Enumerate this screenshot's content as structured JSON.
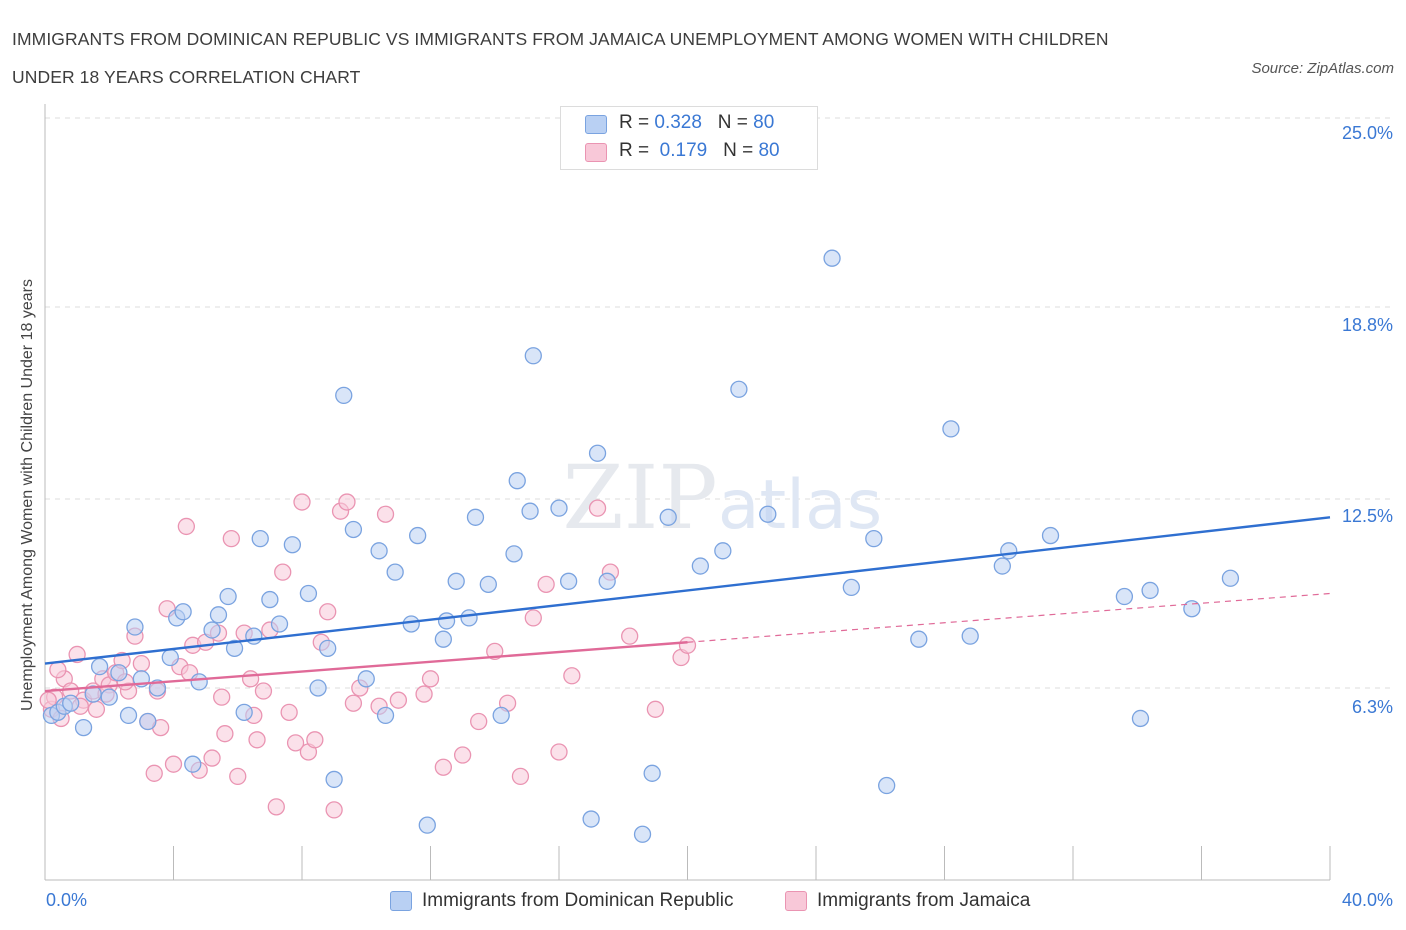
{
  "title_line1": "IMMIGRANTS FROM DOMINICAN REPUBLIC VS IMMIGRANTS FROM JAMAICA UNEMPLOYMENT AMONG WOMEN WITH CHILDREN",
  "title_line2": "UNDER 18 YEARS CORRELATION CHART",
  "source": "Source: ZipAtlas.com",
  "watermark": "ZIPatlas",
  "legend": {
    "row1": {
      "r_label": "R =",
      "r_value": "0.328",
      "n_label": "N =",
      "n_value": "80"
    },
    "row2": {
      "r_label": "R =",
      "r_value": "0.179",
      "n_label": "N =",
      "n_value": "80"
    }
  },
  "colors": {
    "blue_fill": "#b9d0f3",
    "blue_stroke": "#7aa3e0",
    "blue_line": "#2f6fd0",
    "pink_fill": "#f8c8d8",
    "pink_stroke": "#ea94b2",
    "pink_line": "#e06a98",
    "axis_text": "#3a78d4",
    "grid": "#dcdcdc"
  },
  "chart_data": {
    "type": "scatter",
    "title": "IMMIGRANTS FROM DOMINICAN REPUBLIC VS IMMIGRANTS FROM JAMAICA UNEMPLOYMENT AMONG WOMEN WITH CHILDREN UNDER 18 YEARS CORRELATION CHART",
    "xlabel": "",
    "ylabel": "Unemployment Among Women with Children Under 18 years",
    "xlim": [
      0,
      40
    ],
    "ylim": [
      0,
      25
    ],
    "x_tick_labels": [
      "0.0%",
      "40.0%"
    ],
    "y_tick_labels": [
      "6.3%",
      "12.5%",
      "18.8%",
      "25.0%"
    ],
    "y_ticks": [
      6.3,
      12.5,
      18.8,
      25.0
    ],
    "grid": true,
    "legend_position": "top-center",
    "series": [
      {
        "name": "Immigrants from Dominican Republic",
        "r": 0.328,
        "n": 80,
        "trend": {
          "x": [
            0,
            40
          ],
          "y": [
            7.1,
            11.9
          ]
        },
        "points": [
          [
            0.2,
            5.4
          ],
          [
            0.4,
            5.5
          ],
          [
            0.6,
            5.7
          ],
          [
            0.8,
            5.8
          ],
          [
            1.2,
            5.0
          ],
          [
            1.5,
            6.1
          ],
          [
            1.7,
            7.0
          ],
          [
            2.0,
            6.0
          ],
          [
            2.3,
            6.8
          ],
          [
            2.6,
            5.4
          ],
          [
            2.8,
            8.3
          ],
          [
            3.0,
            6.6
          ],
          [
            3.2,
            5.2
          ],
          [
            3.5,
            6.3
          ],
          [
            3.9,
            7.3
          ],
          [
            4.1,
            8.6
          ],
          [
            4.3,
            8.8
          ],
          [
            4.6,
            3.8
          ],
          [
            4.8,
            6.5
          ],
          [
            5.2,
            8.2
          ],
          [
            5.4,
            8.7
          ],
          [
            5.7,
            9.3
          ],
          [
            5.9,
            7.6
          ],
          [
            6.2,
            5.5
          ],
          [
            6.5,
            8.0
          ],
          [
            6.7,
            11.2
          ],
          [
            7.0,
            9.2
          ],
          [
            7.3,
            8.4
          ],
          [
            7.7,
            11.0
          ],
          [
            8.2,
            9.4
          ],
          [
            8.5,
            6.3
          ],
          [
            8.8,
            7.6
          ],
          [
            9.0,
            3.3
          ],
          [
            9.3,
            15.9
          ],
          [
            9.6,
            11.5
          ],
          [
            10.0,
            6.6
          ],
          [
            10.4,
            10.8
          ],
          [
            10.6,
            5.4
          ],
          [
            10.9,
            10.1
          ],
          [
            11.4,
            8.4
          ],
          [
            11.6,
            11.3
          ],
          [
            11.9,
            1.8
          ],
          [
            12.4,
            7.9
          ],
          [
            12.5,
            8.5
          ],
          [
            12.8,
            9.8
          ],
          [
            13.2,
            8.6
          ],
          [
            13.4,
            11.9
          ],
          [
            13.8,
            9.7
          ],
          [
            14.2,
            5.4
          ],
          [
            14.6,
            10.7
          ],
          [
            14.7,
            13.1
          ],
          [
            15.1,
            12.1
          ],
          [
            15.2,
            17.2
          ],
          [
            16.0,
            12.2
          ],
          [
            16.3,
            9.8
          ],
          [
            17.0,
            2.0
          ],
          [
            17.2,
            14.0
          ],
          [
            17.5,
            9.8
          ],
          [
            18.6,
            1.5
          ],
          [
            18.9,
            3.5
          ],
          [
            19.4,
            11.9
          ],
          [
            20.4,
            10.3
          ],
          [
            21.1,
            10.8
          ],
          [
            21.6,
            16.1
          ],
          [
            22.5,
            12.0
          ],
          [
            24.5,
            20.4
          ],
          [
            25.1,
            9.6
          ],
          [
            25.8,
            11.2
          ],
          [
            26.2,
            3.1
          ],
          [
            27.2,
            7.9
          ],
          [
            28.2,
            14.8
          ],
          [
            28.8,
            8.0
          ],
          [
            29.8,
            10.3
          ],
          [
            30.0,
            10.8
          ],
          [
            31.3,
            11.3
          ],
          [
            33.6,
            9.3
          ],
          [
            34.1,
            5.3
          ],
          [
            34.4,
            9.5
          ],
          [
            35.7,
            8.9
          ],
          [
            36.9,
            9.9
          ]
        ]
      },
      {
        "name": "Immigrants from Jamaica",
        "r": 0.179,
        "n": 80,
        "trend": {
          "x": [
            0,
            40
          ],
          "y": [
            6.2,
            9.4
          ]
        },
        "trend_solid_until_x": 20,
        "points": [
          [
            0.2,
            5.6
          ],
          [
            0.3,
            6.0
          ],
          [
            0.5,
            5.3
          ],
          [
            0.6,
            6.6
          ],
          [
            0.8,
            6.2
          ],
          [
            1.0,
            7.4
          ],
          [
            1.2,
            5.9
          ],
          [
            1.5,
            6.2
          ],
          [
            1.6,
            5.6
          ],
          [
            1.8,
            6.6
          ],
          [
            2.0,
            6.4
          ],
          [
            2.2,
            6.8
          ],
          [
            2.4,
            7.2
          ],
          [
            2.6,
            6.2
          ],
          [
            2.8,
            8.0
          ],
          [
            3.0,
            7.1
          ],
          [
            3.2,
            5.2
          ],
          [
            3.4,
            3.5
          ],
          [
            3.6,
            5.0
          ],
          [
            3.8,
            8.9
          ],
          [
            4.0,
            3.8
          ],
          [
            4.2,
            7.0
          ],
          [
            4.4,
            11.6
          ],
          [
            4.6,
            7.7
          ],
          [
            4.8,
            3.6
          ],
          [
            5.0,
            7.8
          ],
          [
            5.2,
            4.0
          ],
          [
            5.4,
            8.1
          ],
          [
            5.6,
            4.8
          ],
          [
            5.8,
            11.2
          ],
          [
            6.0,
            3.4
          ],
          [
            6.2,
            8.1
          ],
          [
            6.4,
            6.6
          ],
          [
            6.6,
            4.6
          ],
          [
            6.8,
            6.2
          ],
          [
            7.0,
            8.2
          ],
          [
            7.2,
            2.4
          ],
          [
            7.4,
            10.1
          ],
          [
            7.6,
            5.5
          ],
          [
            7.8,
            4.5
          ],
          [
            8.0,
            12.4
          ],
          [
            8.2,
            4.2
          ],
          [
            8.4,
            4.6
          ],
          [
            8.6,
            7.8
          ],
          [
            8.8,
            8.8
          ],
          [
            9.0,
            2.3
          ],
          [
            9.2,
            12.1
          ],
          [
            9.4,
            12.4
          ],
          [
            9.6,
            5.8
          ],
          [
            10.4,
            5.7
          ],
          [
            10.6,
            12.0
          ],
          [
            11.0,
            5.9
          ],
          [
            11.8,
            6.1
          ],
          [
            12.4,
            3.7
          ],
          [
            13.0,
            4.1
          ],
          [
            14.0,
            7.5
          ],
          [
            14.4,
            5.8
          ],
          [
            14.8,
            3.4
          ],
          [
            15.2,
            8.6
          ],
          [
            15.6,
            9.7
          ],
          [
            16.0,
            4.2
          ],
          [
            16.4,
            6.7
          ],
          [
            17.2,
            12.2
          ],
          [
            17.6,
            10.1
          ],
          [
            18.2,
            8.0
          ],
          [
            19.0,
            5.6
          ],
          [
            19.8,
            7.3
          ],
          [
            20.0,
            7.7
          ],
          [
            0.1,
            5.9
          ],
          [
            0.4,
            6.9
          ],
          [
            1.1,
            5.7
          ],
          [
            1.9,
            6.1
          ],
          [
            2.5,
            6.5
          ],
          [
            3.5,
            6.2
          ],
          [
            4.5,
            6.8
          ],
          [
            5.5,
            6.0
          ],
          [
            6.5,
            5.4
          ],
          [
            9.8,
            6.3
          ],
          [
            12.0,
            6.6
          ],
          [
            13.5,
            5.2
          ]
        ]
      }
    ]
  },
  "bottom_legend": {
    "item1": "Immigrants from Dominican Republic",
    "item2": "Immigrants from Jamaica"
  }
}
